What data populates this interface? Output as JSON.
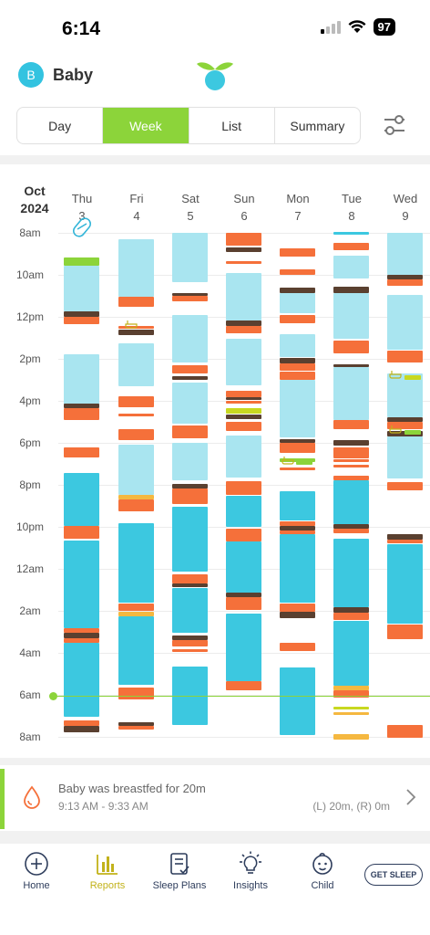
{
  "status_bar": {
    "time": "6:14",
    "battery": "97"
  },
  "header": {
    "avatar_initial": "B",
    "child_name": "Baby"
  },
  "view_tabs": [
    {
      "label": "Day",
      "active": false
    },
    {
      "label": "Week",
      "active": true
    },
    {
      "label": "List",
      "active": false
    },
    {
      "label": "Summary",
      "active": false
    }
  ],
  "chart": {
    "month": "Oct",
    "year": "2024",
    "days": [
      {
        "name": "Thu",
        "date": "3"
      },
      {
        "name": "Fri",
        "date": "4"
      },
      {
        "name": "Sat",
        "date": "5"
      },
      {
        "name": "Sun",
        "date": "6"
      },
      {
        "name": "Mon",
        "date": "7"
      },
      {
        "name": "Tue",
        "date": "8"
      },
      {
        "name": "Wed",
        "date": "9"
      }
    ],
    "hour_labels": [
      "8am",
      "10am",
      "12pm",
      "2pm",
      "4pm",
      "6pm",
      "8pm",
      "10pm",
      "12am",
      "2am",
      "4am",
      "6am",
      "8am"
    ],
    "legend_colors": {
      "nap": "#a9e5f0",
      "night_sleep": "#3cc8e0",
      "feeding": "#f5703a",
      "diaper": "#5a4030",
      "solids": "#8cd43a",
      "bottle": "#f5b840",
      "pump": "#c8d820"
    },
    "now_time": "6am"
  },
  "event_card": {
    "title": "Baby was breastfed for 20m",
    "time": "9:13 AM - 9:33 AM",
    "detail": "(L) 20m, (R) 0m"
  },
  "tabs": [
    {
      "label": "Home",
      "icon": "plus-circle-icon"
    },
    {
      "label": "Reports",
      "icon": "bar-chart-icon",
      "active": true
    },
    {
      "label": "Sleep Plans",
      "icon": "clipboard-check-icon"
    },
    {
      "label": "Insights",
      "icon": "lightbulb-icon"
    },
    {
      "label": "Child",
      "icon": "baby-face-icon"
    }
  ],
  "get_sleep_label": "GET SLEEP"
}
